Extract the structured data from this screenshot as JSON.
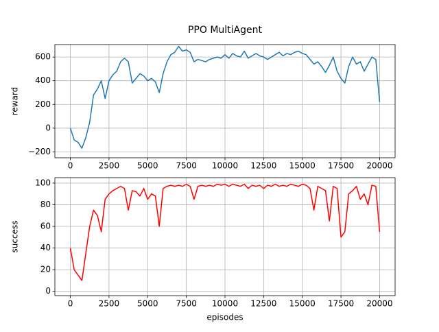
{
  "chart_data": [
    {
      "type": "line",
      "title": "PPO MultiAgent",
      "y_label": "reward",
      "grid": true,
      "x": [
        0,
        250,
        500,
        750,
        1000,
        1250,
        1500,
        1750,
        2000,
        2250,
        2500,
        2750,
        3000,
        3250,
        3500,
        3750,
        4000,
        4250,
        4500,
        4750,
        5000,
        5250,
        5500,
        5750,
        6000,
        6250,
        6500,
        6750,
        7000,
        7250,
        7500,
        7750,
        8000,
        8250,
        8500,
        8750,
        9000,
        9250,
        9500,
        9750,
        10000,
        10250,
        10500,
        10750,
        11000,
        11250,
        11500,
        11750,
        12000,
        12250,
        12500,
        12750,
        13000,
        13250,
        13500,
        13750,
        14000,
        14250,
        14500,
        14750,
        15000,
        15250,
        15500,
        15750,
        16000,
        16250,
        16500,
        16750,
        17000,
        17250,
        17500,
        17750,
        18000,
        18250,
        18500,
        18750,
        19000,
        19250,
        19500,
        19750,
        20000
      ],
      "series": [
        {
          "name": "reward",
          "color": "#1f77b4",
          "values": [
            0,
            -100,
            -120,
            -170,
            -80,
            50,
            280,
            330,
            400,
            250,
            400,
            450,
            480,
            560,
            590,
            560,
            380,
            420,
            460,
            440,
            400,
            420,
            390,
            300,
            460,
            560,
            620,
            640,
            690,
            650,
            660,
            640,
            560,
            580,
            570,
            560,
            580,
            590,
            600,
            590,
            620,
            590,
            630,
            610,
            600,
            650,
            590,
            610,
            630,
            610,
            600,
            580,
            600,
            620,
            640,
            610,
            630,
            620,
            640,
            650,
            630,
            620,
            580,
            540,
            560,
            520,
            470,
            530,
            600,
            480,
            420,
            380,
            520,
            600,
            540,
            560,
            480,
            540,
            600,
            580,
            220
          ]
        }
      ],
      "xlim": [
        -1000,
        21000
      ],
      "xticks": [
        0,
        2500,
        5000,
        7500,
        10000,
        12500,
        15000,
        17500,
        20000
      ],
      "ylim": [
        -250,
        705
      ],
      "yticks": [
        {
          "value": -200,
          "label": "−200"
        },
        0,
        200,
        400,
        600
      ]
    },
    {
      "type": "line",
      "x_label": "episodes",
      "y_label": "success",
      "grid": true,
      "x": [
        0,
        250,
        500,
        750,
        1000,
        1250,
        1500,
        1750,
        2000,
        2250,
        2500,
        2750,
        3000,
        3250,
        3500,
        3750,
        4000,
        4250,
        4500,
        4750,
        5000,
        5250,
        5500,
        5750,
        6000,
        6250,
        6500,
        6750,
        7000,
        7250,
        7500,
        7750,
        8000,
        8250,
        8500,
        8750,
        9000,
        9250,
        9500,
        9750,
        10000,
        10250,
        10500,
        10750,
        11000,
        11250,
        11500,
        11750,
        12000,
        12250,
        12500,
        12750,
        13000,
        13250,
        13500,
        13750,
        14000,
        14250,
        14500,
        14750,
        15000,
        15250,
        15500,
        15750,
        16000,
        16250,
        16500,
        16750,
        17000,
        17250,
        17500,
        17750,
        18000,
        18250,
        18500,
        18750,
        19000,
        19250,
        19500,
        19750,
        20000
      ],
      "series": [
        {
          "name": "success",
          "color": "#ff0000",
          "values": [
            40,
            20,
            15,
            10,
            35,
            60,
            75,
            70,
            55,
            85,
            90,
            93,
            95,
            97,
            95,
            75,
            93,
            92,
            88,
            95,
            85,
            90,
            88,
            60,
            95,
            97,
            98,
            97,
            98,
            97,
            99,
            97,
            85,
            97,
            98,
            97,
            98,
            97,
            99,
            98,
            99,
            97,
            99,
            98,
            97,
            99,
            95,
            98,
            97,
            98,
            95,
            98,
            97,
            99,
            97,
            98,
            97,
            99,
            98,
            97,
            99,
            98,
            95,
            75,
            97,
            95,
            93,
            65,
            97,
            95,
            50,
            55,
            90,
            93,
            97,
            85,
            90,
            80,
            98,
            97,
            55
          ]
        }
      ],
      "xlim": [
        -1000,
        21000
      ],
      "xticks": [
        0,
        2500,
        5000,
        7500,
        10000,
        12500,
        15000,
        17500,
        20000
      ],
      "ylim": [
        -4,
        105
      ],
      "yticks": [
        0,
        20,
        40,
        60,
        80,
        100
      ]
    }
  ]
}
